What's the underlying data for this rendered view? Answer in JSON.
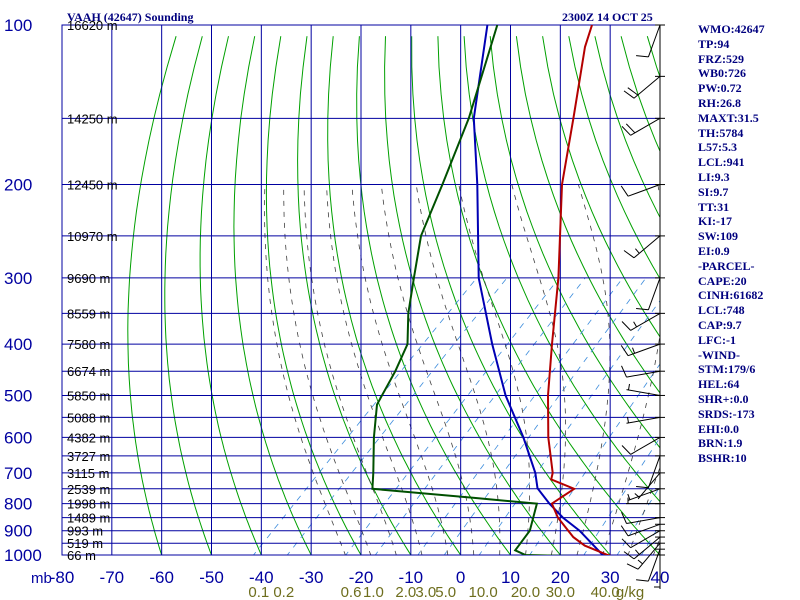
{
  "title_left": "VAAH (42647) Sounding",
  "title_right": "2300Z 14 OCT 25",
  "indices": [
    "WMO:42647",
    "TP:94",
    "FRZ:529",
    "WB0:726",
    "PW:0.72",
    "RH:26.8",
    "MAXT:31.5",
    "TH:5784",
    "L57:5.3",
    "LCL:941",
    "LI:9.3",
    "SI:9.7",
    "TT:31",
    "KI:-17",
    "SW:109",
    "EI:0.9",
    "-PARCEL-",
    "CAPE:20",
    "CINH:61682",
    "LCL:748",
    "CAP:9.7",
    "LFC:-1",
    "-WIND-",
    "STM:179/6",
    "HEL:64",
    "SHR+:0.0",
    "SRDS:-173",
    "EHI:0.0",
    "BRN:1.9",
    "BSHR:10"
  ],
  "colors": {
    "grid": "#0000a0",
    "dry_adiabat": "#00a000",
    "moist_adiabat": "#404040",
    "mixing_ratio": "#3c8cdc",
    "temperature": "#b40000",
    "parcel": "#0000b4",
    "dewpoint": "#005000",
    "text": "#00007f",
    "mixing_label": "#6e6e1e"
  },
  "chart_data": {
    "type": "skew-t log-p sounding",
    "pressure_unit_label": "mb",
    "pressure_axis": [
      100,
      200,
      300,
      400,
      500,
      600,
      700,
      800,
      900,
      1000
    ],
    "temperature_axis": [
      -80,
      -70,
      -60,
      -50,
      -40,
      -30,
      -20,
      -10,
      0,
      10,
      20,
      30,
      40
    ],
    "height_labels": [
      {
        "p": 100,
        "label": "16620 m"
      },
      {
        "p": 150,
        "label": "14250 m"
      },
      {
        "p": 200,
        "label": "12450 m"
      },
      {
        "p": 250,
        "label": "10970 m"
      },
      {
        "p": 300,
        "label": "9690 m"
      },
      {
        "p": 350,
        "label": "8559 m"
      },
      {
        "p": 400,
        "label": "7580 m"
      },
      {
        "p": 450,
        "label": "6674 m"
      },
      {
        "p": 500,
        "label": "5850 m"
      },
      {
        "p": 550,
        "label": "5088 m"
      },
      {
        "p": 600,
        "label": "4382 m"
      },
      {
        "p": 650,
        "label": "3727 m"
      },
      {
        "p": 700,
        "label": "3115 m"
      },
      {
        "p": 750,
        "label": "2539 m"
      },
      {
        "p": 800,
        "label": "1998 m"
      },
      {
        "p": 850,
        "label": "1489 m"
      },
      {
        "p": 900,
        "label": "993 m"
      },
      {
        "p": 950,
        "label": "519 m"
      },
      {
        "p": 1000,
        "label": "66 m"
      }
    ],
    "mixing_ratio_labels": [
      "0.1",
      "0.2",
      "0.6",
      "1.0",
      "2.0",
      "3.0",
      "5.0",
      "10.0",
      "20.0",
      "30.0",
      "40.0",
      "g/kg"
    ],
    "mixing_ratio_label_temps": [
      -40.5,
      -35.5,
      -22,
      -17.5,
      -11,
      -7,
      -3,
      4.5,
      13,
      20,
      29,
      34
    ],
    "temperature_profile": [
      [
        1005,
        30.5
      ],
      [
        1000,
        29.5
      ],
      [
        960,
        23
      ],
      [
        925,
        19
      ],
      [
        850,
        12
      ],
      [
        800,
        8
      ],
      [
        750,
        9.5
      ],
      [
        720,
        3
      ],
      [
        700,
        2
      ],
      [
        600,
        -6
      ],
      [
        500,
        -14.5
      ],
      [
        400,
        -24
      ],
      [
        300,
        -36
      ],
      [
        200,
        -54
      ],
      [
        150,
        -65
      ],
      [
        110,
        -77
      ],
      [
        100,
        -80
      ]
    ],
    "dewpoint_profile": [
      [
        1005,
        23
      ],
      [
        1000,
        13
      ],
      [
        980,
        10
      ],
      [
        900,
        9
      ],
      [
        800,
        5
      ],
      [
        780,
        -9
      ],
      [
        750,
        -31
      ],
      [
        700,
        -34
      ],
      [
        600,
        -41
      ],
      [
        520,
        -47
      ],
      [
        450,
        -50
      ],
      [
        400,
        -53
      ],
      [
        350,
        -59
      ],
      [
        300,
        -65
      ],
      [
        250,
        -72
      ],
      [
        200,
        -78
      ],
      [
        150,
        -86
      ],
      [
        100,
        -99
      ]
    ],
    "parcel_profile": [
      [
        1000,
        28.5
      ],
      [
        900,
        19
      ],
      [
        850,
        13
      ],
      [
        800,
        7.5
      ],
      [
        748,
        2
      ],
      [
        700,
        -1.5
      ],
      [
        600,
        -11
      ],
      [
        500,
        -23
      ],
      [
        400,
        -36
      ],
      [
        300,
        -52
      ],
      [
        200,
        -71
      ],
      [
        150,
        -85
      ],
      [
        100,
        -101
      ]
    ],
    "wind_barbs": [
      {
        "p": 1000,
        "dir": 180,
        "spd": 5
      },
      {
        "p": 975,
        "dir": 200,
        "spd": 10
      },
      {
        "p": 950,
        "dir": 220,
        "spd": 15
      },
      {
        "p": 925,
        "dir": 230,
        "spd": 15
      },
      {
        "p": 900,
        "dir": 240,
        "spd": 10
      },
      {
        "p": 875,
        "dir": 250,
        "spd": 10
      },
      {
        "p": 850,
        "dir": 260,
        "spd": 10
      },
      {
        "p": 800,
        "dir": 270,
        "spd": 5
      },
      {
        "p": 750,
        "dir": 250,
        "spd": 5
      },
      {
        "p": 700,
        "dir": 220,
        "spd": 5
      },
      {
        "p": 650,
        "dir": 200,
        "spd": 10
      },
      {
        "p": 600,
        "dir": 240,
        "spd": 10
      },
      {
        "p": 550,
        "dir": 260,
        "spd": 5
      },
      {
        "p": 500,
        "dir": 280,
        "spd": 5
      },
      {
        "p": 450,
        "dir": 260,
        "spd": 10
      },
      {
        "p": 400,
        "dir": 250,
        "spd": 15
      },
      {
        "p": 350,
        "dir": 240,
        "spd": 15
      },
      {
        "p": 300,
        "dir": 200,
        "spd": 10
      },
      {
        "p": 250,
        "dir": 230,
        "spd": 15
      },
      {
        "p": 200,
        "dir": 250,
        "spd": 10
      },
      {
        "p": 150,
        "dir": 240,
        "spd": 20
      },
      {
        "p": 125,
        "dir": 230,
        "spd": 20
      },
      {
        "p": 100,
        "dir": 200,
        "spd": 10
      }
    ]
  }
}
